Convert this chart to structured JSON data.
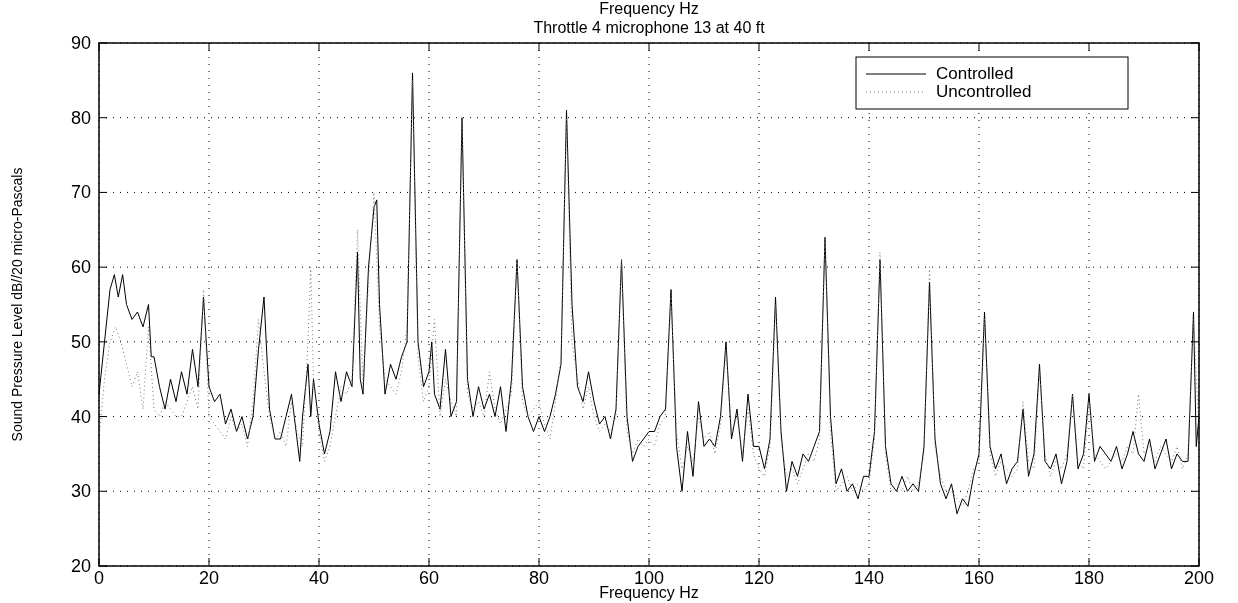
{
  "chart_data": {
    "type": "line",
    "title": "Frequency Hz",
    "subtitle": "Throttle 4 microphone 13 at 40  ft",
    "xlabel": "Frequency Hz",
    "ylabel": "Sound Pressure Level dB//20 micro-Pascals",
    "xlim": [
      0,
      200
    ],
    "ylim": [
      20,
      90
    ],
    "xticks": [
      0,
      20,
      40,
      60,
      80,
      100,
      120,
      140,
      160,
      180,
      200
    ],
    "yticks": [
      20,
      30,
      40,
      50,
      60,
      70,
      80,
      90
    ],
    "grid": true,
    "legend": "top right",
    "series": [
      {
        "name": "Controlled",
        "color": "#000000",
        "line_style": "solid",
        "x": [
          0,
          1,
          2,
          2.8,
          3.5,
          4.3,
          5,
          6,
          7,
          8,
          9,
          9.5,
          10,
          11,
          12,
          13,
          14,
          15,
          16,
          17,
          18,
          19,
          20,
          21,
          22,
          23,
          24,
          25,
          26,
          27,
          28,
          29,
          30,
          31,
          32,
          33,
          34,
          35,
          36,
          36.5,
          37,
          38,
          38.5,
          39,
          40,
          41,
          42,
          43,
          44,
          45,
          46,
          47,
          47.5,
          48,
          49,
          50,
          50.5,
          51,
          52,
          53,
          54,
          55,
          56,
          57,
          58,
          59,
          60,
          60.5,
          61,
          62,
          63,
          64,
          65,
          66,
          67,
          68,
          69,
          70,
          71,
          72,
          73,
          74,
          75,
          76,
          77,
          78,
          79,
          80,
          81,
          82,
          83,
          84,
          85,
          86,
          87,
          88,
          89,
          90,
          91,
          92,
          93,
          94,
          95,
          96,
          97,
          98,
          99,
          100,
          101,
          102,
          103,
          104,
          105,
          106,
          107,
          108,
          109,
          110,
          111,
          112,
          113,
          114,
          115,
          116,
          117,
          118,
          119,
          120,
          121,
          122,
          123,
          124,
          125,
          126,
          127,
          128,
          129,
          130,
          131,
          132,
          133,
          134,
          135,
          136,
          137,
          138,
          139,
          140,
          141,
          142,
          143,
          144,
          145,
          146,
          147,
          148,
          149,
          150,
          151,
          152,
          153,
          154,
          155,
          156,
          157,
          158,
          159,
          160,
          161,
          162,
          163,
          164,
          165,
          166,
          167,
          168,
          169,
          170,
          171,
          172,
          173,
          174,
          175,
          176,
          177,
          178,
          179,
          180,
          181,
          182,
          183,
          184,
          185,
          186,
          187,
          188,
          189,
          190,
          191,
          192,
          193,
          194,
          195,
          196,
          197,
          198,
          199,
          199.5,
          200
        ],
        "values": [
          43,
          50,
          57,
          59,
          56,
          59,
          55,
          53,
          54,
          52,
          55,
          48,
          48,
          44,
          41,
          45,
          42,
          46,
          43,
          49,
          44,
          56,
          44,
          42,
          43,
          39,
          41,
          38,
          40,
          37,
          40,
          49,
          56,
          41,
          37,
          37,
          40,
          43,
          37,
          34,
          40,
          47,
          40,
          45,
          39,
          35,
          38,
          46,
          42,
          46,
          44,
          62,
          45,
          43,
          60,
          68,
          69,
          55,
          43,
          47,
          45,
          48,
          50,
          86,
          50,
          44,
          46,
          50,
          43,
          41,
          49,
          40,
          42,
          80,
          45,
          40,
          44,
          41,
          43,
          40,
          44,
          38,
          45,
          61,
          44,
          40,
          38,
          40,
          38,
          40,
          43,
          47,
          81,
          55,
          44,
          42,
          46,
          42,
          39,
          40,
          37,
          41,
          61,
          40,
          34,
          36,
          37,
          38,
          38,
          40,
          41,
          57,
          36,
          30,
          38,
          32,
          42,
          36,
          37,
          36,
          40,
          50,
          37,
          41,
          34,
          43,
          36,
          36,
          33,
          37,
          56,
          38,
          30,
          34,
          32,
          35,
          34,
          36,
          38,
          64,
          40,
          31,
          33,
          30,
          31,
          29,
          32,
          32,
          38,
          61,
          36,
          31,
          30,
          32,
          30,
          31,
          30,
          36,
          58,
          37,
          31,
          29,
          31,
          27,
          29,
          28,
          32,
          35,
          54,
          36,
          33,
          35,
          31,
          33,
          34,
          41,
          32,
          35,
          47,
          34,
          33,
          35,
          31,
          34,
          43,
          33,
          35,
          43,
          34,
          36,
          35,
          34,
          36,
          33,
          35,
          38,
          35,
          34,
          37,
          33,
          35,
          37,
          33,
          35,
          34,
          34,
          54,
          36,
          40
        ]
      },
      {
        "name": "Uncontrolled",
        "color": "#777777",
        "line_style": "dotted",
        "x": [
          0,
          1,
          2,
          3,
          4,
          5,
          6,
          7,
          8,
          9,
          10,
          11,
          12,
          13,
          14,
          15,
          16,
          17,
          18,
          19,
          20,
          21,
          22,
          23,
          24,
          25,
          26,
          27,
          28,
          29,
          30,
          31,
          32,
          33,
          34,
          35,
          36,
          37,
          38,
          38.5,
          39,
          40,
          41,
          42,
          43,
          44,
          45,
          46,
          47,
          48,
          49,
          50,
          51,
          52,
          53,
          54,
          55,
          56,
          57,
          58,
          59,
          60,
          61,
          62,
          63,
          64,
          65,
          66,
          67,
          68,
          69,
          70,
          71,
          72,
          73,
          74,
          75,
          76,
          77,
          78,
          79,
          80,
          81,
          82,
          83,
          84,
          85,
          86,
          87,
          88,
          89,
          90,
          91,
          92,
          93,
          94,
          95,
          96,
          97,
          98,
          99,
          100,
          101,
          102,
          103,
          104,
          105,
          106,
          107,
          108,
          109,
          110,
          111,
          112,
          113,
          114,
          115,
          116,
          117,
          118,
          119,
          120,
          121,
          122,
          123,
          124,
          125,
          126,
          127,
          128,
          129,
          130,
          131,
          132,
          133,
          134,
          135,
          136,
          137,
          138,
          139,
          140,
          141,
          142,
          143,
          144,
          145,
          146,
          147,
          148,
          149,
          150,
          151,
          152,
          153,
          154,
          155,
          156,
          157,
          158,
          159,
          160,
          161,
          162,
          163,
          164,
          165,
          166,
          167,
          168,
          169,
          170,
          171,
          172,
          173,
          174,
          175,
          176,
          177,
          178,
          179,
          180,
          181,
          182,
          183,
          184,
          185,
          186,
          187,
          188,
          189,
          190,
          191,
          192,
          193,
          194,
          195,
          196,
          197,
          198,
          199,
          200
        ],
        "values": [
          37,
          45,
          50,
          52,
          50,
          47,
          44,
          46,
          41,
          52,
          41,
          40,
          42,
          41,
          40,
          40,
          42,
          44,
          41,
          57,
          40,
          39,
          38,
          37,
          40,
          38,
          39,
          36,
          42,
          53,
          46,
          40,
          37,
          38,
          36,
          42,
          38,
          36,
          50,
          60,
          45,
          38,
          34,
          36,
          40,
          44,
          43,
          45,
          65,
          44,
          58,
          70,
          52,
          45,
          44,
          43,
          46,
          52,
          85,
          48,
          42,
          44,
          53,
          40,
          45,
          42,
          40,
          80,
          43,
          41,
          42,
          40,
          46,
          41,
          39,
          41,
          43,
          61,
          42,
          40,
          41,
          42,
          39,
          37,
          42,
          48,
          80,
          50,
          45,
          41,
          44,
          40,
          38,
          39,
          38,
          40,
          61,
          38,
          35,
          37,
          36,
          37,
          36,
          39,
          40,
          56,
          38,
          33,
          36,
          34,
          40,
          37,
          38,
          35,
          39,
          49,
          38,
          40,
          35,
          41,
          35,
          33,
          32,
          36,
          55,
          37,
          32,
          33,
          31,
          33,
          35,
          34,
          37,
          64,
          38,
          30,
          31,
          32,
          30,
          31,
          30,
          31,
          37,
          62,
          35,
          30,
          31,
          30,
          32,
          30,
          31,
          35,
          60,
          36,
          32,
          30,
          30,
          29,
          28,
          30,
          33,
          34,
          53,
          35,
          32,
          34,
          33,
          32,
          33,
          42,
          34,
          33,
          46,
          35,
          32,
          34,
          33,
          35,
          43,
          34,
          33,
          42,
          35,
          34,
          33,
          34,
          35,
          34,
          36,
          35,
          43,
          35,
          36,
          34,
          36,
          35,
          34,
          36,
          33,
          35,
          53,
          38
        ]
      }
    ]
  }
}
